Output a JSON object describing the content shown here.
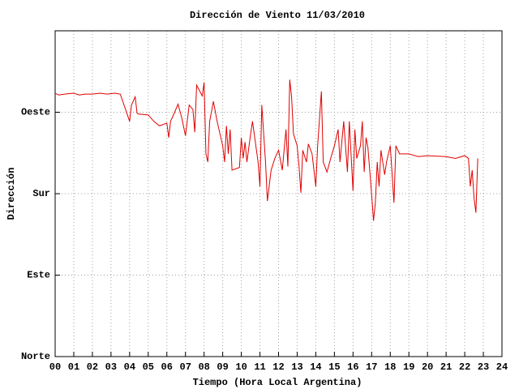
{
  "chart_data": {
    "type": "line",
    "title": "Dirección de Viento 11/03/2010",
    "x_label": "Tiempo (Hora Local Argentina)",
    "y_label": "Dirección",
    "xlim": [
      0,
      24
    ],
    "xticks": [
      {
        "value": 0,
        "label": "00"
      },
      {
        "value": 1,
        "label": "01"
      },
      {
        "value": 2,
        "label": "02"
      },
      {
        "value": 3,
        "label": "03"
      },
      {
        "value": 4,
        "label": "04"
      },
      {
        "value": 5,
        "label": "05"
      },
      {
        "value": 6,
        "label": "06"
      },
      {
        "value": 7,
        "label": "07"
      },
      {
        "value": 8,
        "label": "08"
      },
      {
        "value": 9,
        "label": "09"
      },
      10,
      11,
      12,
      13,
      14,
      15,
      16,
      17,
      18,
      19,
      20,
      21,
      22,
      23,
      24
    ],
    "ylim": [
      0,
      360
    ],
    "yticks": [
      {
        "value": 0,
        "label": "Norte"
      },
      {
        "value": 90,
        "label": "Este"
      },
      {
        "value": 180,
        "label": "Sur"
      },
      {
        "value": 270,
        "label": "Oeste"
      }
    ],
    "grid": true,
    "series": [
      {
        "color": "#e00000",
        "x": [
          0,
          0.2,
          0.5,
          1,
          1.3,
          1.6,
          2,
          2.4,
          2.8,
          3.2,
          3.5,
          4.0,
          4.1,
          4.3,
          4.4,
          4.5,
          5.0,
          5.3,
          5.6,
          6.0,
          6.1,
          6.2,
          6.4,
          6.6,
          6.8,
          7.0,
          7.2,
          7.4,
          7.5,
          7.6,
          7.9,
          8.0,
          8.1,
          8.2,
          8.3,
          8.5,
          8.7,
          9.0,
          9.1,
          9.2,
          9.3,
          9.4,
          9.5,
          9.9,
          10.0,
          10.1,
          10.2,
          10.3,
          10.5,
          10.6,
          10.9,
          11.0,
          11.1,
          11.3,
          11.4,
          11.6,
          11.8,
          12.0,
          12.2,
          12.4,
          12.5,
          12.6,
          12.7,
          12.8,
          13.0,
          13.1,
          13.2,
          13.3,
          13.5,
          13.6,
          13.8,
          14.0,
          14.1,
          14.3,
          14.4,
          14.6,
          14.8,
          15.0,
          15.2,
          15.3,
          15.5,
          15.7,
          15.8,
          16.0,
          16.1,
          16.2,
          16.4,
          16.5,
          16.6,
          16.7,
          16.8,
          17.0,
          17.1,
          17.2,
          17.3,
          17.4,
          17.5,
          17.7,
          17.8,
          18.0,
          18.2,
          18.3,
          18.5,
          19.0,
          19.5,
          20.0,
          21.0,
          21.5,
          22.0,
          22.2,
          22.3,
          22.4,
          22.5,
          22.6,
          22.7
        ],
        "values": [
          291,
          289,
          290,
          291,
          289,
          290,
          290,
          291,
          290,
          291,
          290,
          260,
          278,
          287,
          269,
          268,
          267,
          260,
          255,
          258,
          242,
          260,
          269,
          279,
          264,
          244,
          278,
          273,
          248,
          300,
          288,
          303,
          224,
          215,
          260,
          282,
          260,
          233,
          215,
          255,
          224,
          251,
          206,
          209,
          242,
          219,
          237,
          215,
          246,
          260,
          215,
          188,
          278,
          215,
          172,
          206,
          219,
          228,
          206,
          251,
          210,
          306,
          287,
          246,
          233,
          210,
          181,
          228,
          215,
          235,
          224,
          188,
          233,
          293,
          215,
          204,
          219,
          233,
          251,
          215,
          260,
          204,
          260,
          183,
          251,
          219,
          233,
          260,
          204,
          242,
          231,
          179,
          150,
          170,
          215,
          188,
          228,
          201,
          215,
          233,
          170,
          233,
          224,
          224,
          221,
          222,
          221,
          219,
          222,
          219,
          188,
          206,
          175,
          159,
          219
        ]
      }
    ]
  }
}
